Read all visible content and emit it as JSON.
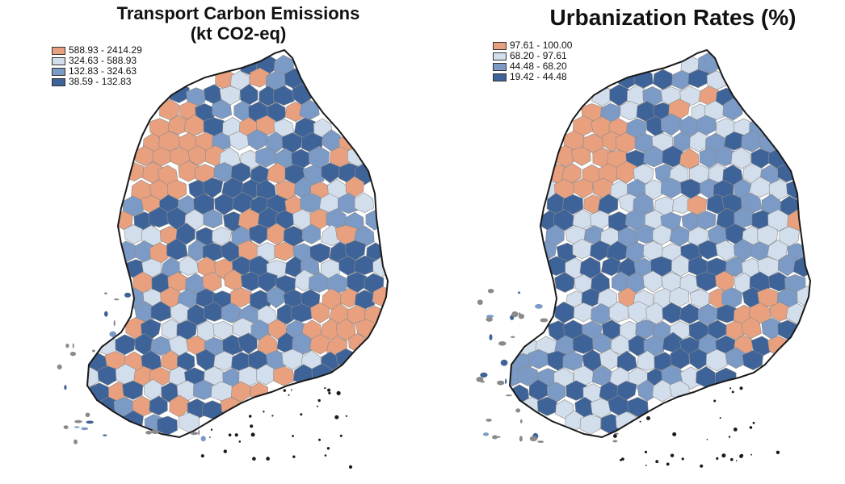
{
  "maps": [
    {
      "title_line1": "Transport Carbon Emissions",
      "title_line2": "(kt CO2-eq)",
      "legend": [
        {
          "label": "588.93 - 2414.29",
          "color": "#e8a07f"
        },
        {
          "label": "324.63 - 588.93",
          "color": "#d3deec"
        },
        {
          "label": "132.83 - 324.63",
          "color": "#7b9ac6"
        },
        {
          "label": "38.59 - 132.83",
          "color": "#3e6398"
        }
      ]
    },
    {
      "title_line1": "Urbanization Rates (%)",
      "legend": [
        {
          "label": "97.61 - 100.00",
          "color": "#e8a07f"
        },
        {
          "label": "68.20 - 97.61",
          "color": "#d3deec"
        },
        {
          "label": "44.48 - 68.20",
          "color": "#7b9ac6"
        },
        {
          "label": "19.42 - 44.48",
          "color": "#3e6398"
        }
      ]
    }
  ],
  "colors": {
    "boundary": "#1a1a1a",
    "island_gray": "#8a8a8a"
  }
}
